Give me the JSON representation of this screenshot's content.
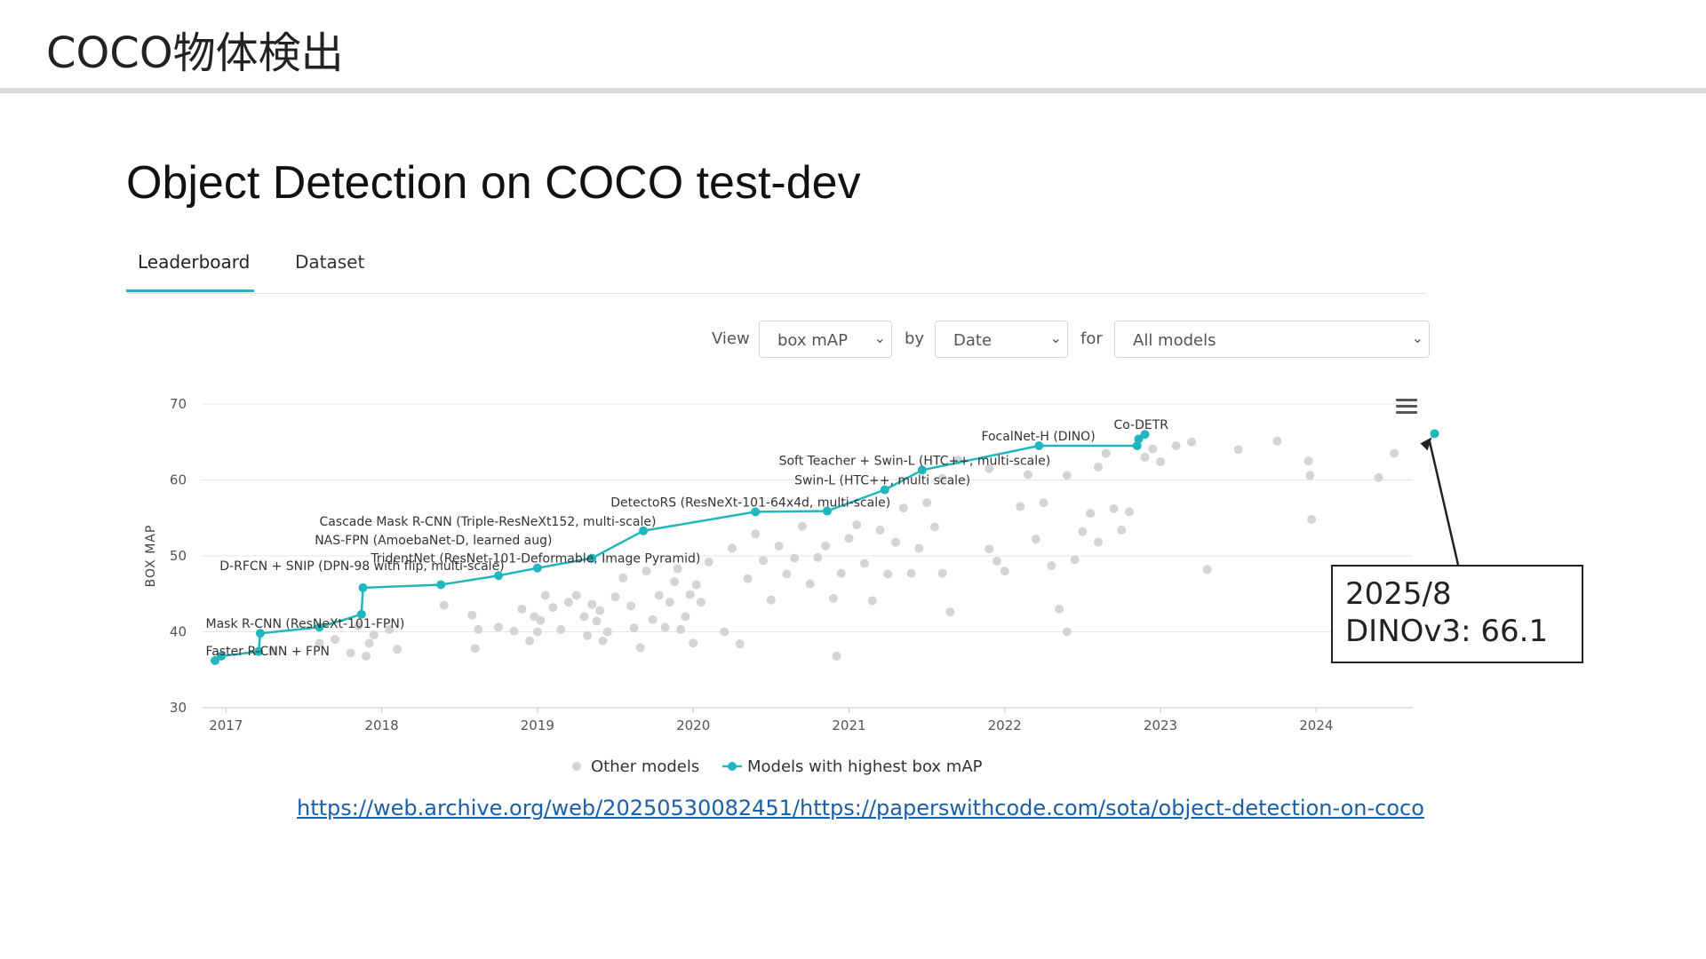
{
  "slide": {
    "title": "COCO物体検出"
  },
  "page": {
    "heading": "Object Detection on COCO test-dev"
  },
  "tabs": [
    {
      "label": "Leaderboard",
      "active": true
    },
    {
      "label": "Dataset",
      "active": false
    }
  ],
  "controls": {
    "view_label": "View",
    "view_value": "box mAP",
    "by_label": "by",
    "by_value": "Date",
    "for_label": "for",
    "for_value": "All models"
  },
  "callout": {
    "line1": "2025/8",
    "line2": "DINOv3: 66.1"
  },
  "source_url": "https://web.archive.org/web/20250530082451/https://paperswithcode.com/sota/object-detection-on-coco",
  "colors": {
    "accent": "#21b6bd",
    "other_points": "#d4d4d4",
    "grid": "#e6e6e6"
  },
  "icons": {
    "chart_menu": "hamburger-icon"
  },
  "chart_data": {
    "type": "scatter",
    "ylabel": "BOX MAP",
    "xlabel": "",
    "ylim": [
      30,
      70
    ],
    "xlim": [
      2016.85,
      2024.62
    ],
    "yticks": [
      30,
      40,
      50,
      60,
      70
    ],
    "xticks": [
      2017,
      2018,
      2019,
      2020,
      2021,
      2022,
      2023,
      2024
    ],
    "grid": true,
    "legend": [
      "Other models",
      "Models with highest box mAP"
    ],
    "legend_position": "bottom",
    "sota": {
      "name": "Models with highest box mAP",
      "points": [
        [
          2016.93,
          36.2
        ],
        [
          2016.97,
          36.8
        ],
        [
          2017.21,
          37.4
        ],
        [
          2017.22,
          39.8
        ],
        [
          2017.6,
          40.6
        ],
        [
          2017.87,
          42.3
        ],
        [
          2017.88,
          45.8
        ],
        [
          2018.38,
          46.2
        ],
        [
          2018.75,
          47.4
        ],
        [
          2019.0,
          48.4
        ],
        [
          2019.35,
          49.7
        ],
        [
          2019.68,
          53.3
        ],
        [
          2020.4,
          55.8
        ],
        [
          2020.86,
          55.9
        ],
        [
          2021.23,
          58.7
        ],
        [
          2021.47,
          61.3
        ],
        [
          2022.22,
          64.5
        ],
        [
          2022.85,
          64.5
        ],
        [
          2022.86,
          65.4
        ],
        [
          2022.9,
          66.0
        ]
      ]
    },
    "labels": [
      {
        "text": "Faster R-CNN + FPN",
        "x": 2016.87,
        "y": 36.2
      },
      {
        "text": "Mask R-CNN (ResNeXt-101-FPN)",
        "x": 2016.87,
        "y": 39.8
      },
      {
        "text": "D-RFCN + SNIP (DPN-98 with flip, multi-scale)",
        "x": 2016.96,
        "y": 47.4
      },
      {
        "text": "TridentNet (ResNet-101-Deformable, Image Pyramid)",
        "x": 2017.93,
        "y": 48.4
      },
      {
        "text": "NAS-FPN (AmoebaNet-D, learned aug)",
        "x": 2017.57,
        "y": 50.8
      },
      {
        "text": "Cascade Mask R-CNN (Triple-ResNeXt152, multi-scale)",
        "x": 2017.6,
        "y": 53.3
      },
      {
        "text": "DetectoRS (ResNeXt-101-64x4d, multi-scale)",
        "x": 2019.47,
        "y": 55.8
      },
      {
        "text": "Swin-L (HTC++, multi scale)",
        "x": 2020.65,
        "y": 58.7
      },
      {
        "text": "Soft Teacher + Swin-L (HTC++, multi-scale)",
        "x": 2020.55,
        "y": 61.3
      },
      {
        "text": "FocalNet-H (DINO)",
        "x": 2021.85,
        "y": 64.5
      },
      {
        "text": "Co-DETR",
        "x": 2022.7,
        "y": 66.0
      }
    ],
    "other_models": [
      [
        2017.3,
        37.5
      ],
      [
        2017.6,
        38.5
      ],
      [
        2017.7,
        39.0
      ],
      [
        2017.8,
        37.2
      ],
      [
        2017.9,
        36.8
      ],
      [
        2017.92,
        38.5
      ],
      [
        2017.85,
        40.8
      ],
      [
        2017.95,
        39.6
      ],
      [
        2018.05,
        40.3
      ],
      [
        2018.1,
        37.7
      ],
      [
        2018.4,
        43.5
      ],
      [
        2018.58,
        42.2
      ],
      [
        2018.6,
        37.8
      ],
      [
        2018.62,
        40.3
      ],
      [
        2018.75,
        40.6
      ],
      [
        2018.85,
        40.1
      ],
      [
        2018.9,
        43.0
      ],
      [
        2018.95,
        38.8
      ],
      [
        2018.98,
        42.0
      ],
      [
        2019.0,
        40.0
      ],
      [
        2019.02,
        41.5
      ],
      [
        2019.05,
        44.8
      ],
      [
        2019.1,
        43.2
      ],
      [
        2019.15,
        40.3
      ],
      [
        2019.2,
        43.9
      ],
      [
        2019.25,
        44.8
      ],
      [
        2019.3,
        42.0
      ],
      [
        2019.32,
        39.5
      ],
      [
        2019.35,
        43.6
      ],
      [
        2019.38,
        41.4
      ],
      [
        2019.4,
        42.8
      ],
      [
        2019.42,
        38.8
      ],
      [
        2019.45,
        40.0
      ],
      [
        2019.5,
        44.6
      ],
      [
        2019.55,
        47.1
      ],
      [
        2019.6,
        43.4
      ],
      [
        2019.62,
        40.5
      ],
      [
        2019.66,
        37.9
      ],
      [
        2019.7,
        48.0
      ],
      [
        2019.74,
        41.6
      ],
      [
        2019.78,
        44.8
      ],
      [
        2019.82,
        40.6
      ],
      [
        2019.85,
        43.9
      ],
      [
        2019.88,
        46.6
      ],
      [
        2019.9,
        48.3
      ],
      [
        2019.92,
        40.3
      ],
      [
        2019.95,
        42.0
      ],
      [
        2019.98,
        44.9
      ],
      [
        2020.0,
        38.5
      ],
      [
        2020.02,
        46.2
      ],
      [
        2020.05,
        43.9
      ],
      [
        2020.1,
        49.2
      ],
      [
        2020.2,
        40.0
      ],
      [
        2020.25,
        51.0
      ],
      [
        2020.3,
        38.4
      ],
      [
        2020.35,
        47.0
      ],
      [
        2020.4,
        52.9
      ],
      [
        2020.45,
        49.4
      ],
      [
        2020.5,
        44.2
      ],
      [
        2020.55,
        51.3
      ],
      [
        2020.6,
        47.6
      ],
      [
        2020.65,
        49.7
      ],
      [
        2020.7,
        53.9
      ],
      [
        2020.75,
        46.3
      ],
      [
        2020.8,
        49.8
      ],
      [
        2020.85,
        51.3
      ],
      [
        2020.9,
        44.4
      ],
      [
        2020.92,
        36.8
      ],
      [
        2020.95,
        47.7
      ],
      [
        2021.0,
        52.3
      ],
      [
        2021.05,
        54.1
      ],
      [
        2021.1,
        49.0
      ],
      [
        2021.15,
        44.1
      ],
      [
        2021.2,
        53.4
      ],
      [
        2021.25,
        47.6
      ],
      [
        2021.3,
        51.8
      ],
      [
        2021.35,
        56.3
      ],
      [
        2021.4,
        47.7
      ],
      [
        2021.45,
        51.0
      ],
      [
        2021.5,
        57.0
      ],
      [
        2021.55,
        53.8
      ],
      [
        2021.6,
        47.7
      ],
      [
        2021.65,
        42.6
      ],
      [
        2021.9,
        50.9
      ],
      [
        2021.95,
        49.3
      ],
      [
        2022.0,
        48.0
      ],
      [
        2022.1,
        56.5
      ],
      [
        2022.2,
        52.2
      ],
      [
        2022.25,
        57.0
      ],
      [
        2022.3,
        48.7
      ],
      [
        2022.35,
        43.0
      ],
      [
        2022.4,
        40.0
      ],
      [
        2022.45,
        49.5
      ],
      [
        2022.5,
        53.2
      ],
      [
        2022.55,
        55.6
      ],
      [
        2022.6,
        51.8
      ],
      [
        2022.65,
        63.5
      ],
      [
        2022.7,
        56.2
      ],
      [
        2022.75,
        53.4
      ],
      [
        2022.8,
        55.8
      ],
      [
        2022.9,
        63.0
      ],
      [
        2022.95,
        64.1
      ],
      [
        2023.0,
        62.4
      ],
      [
        2023.1,
        64.5
      ],
      [
        2023.2,
        65.0
      ],
      [
        2023.3,
        48.2
      ],
      [
        2023.5,
        64.0
      ],
      [
        2023.75,
        65.1
      ],
      [
        2023.95,
        62.5
      ],
      [
        2023.96,
        60.6
      ],
      [
        2023.97,
        54.8
      ],
      [
        2024.4,
        60.3
      ],
      [
        2024.5,
        63.5
      ],
      [
        2021.9,
        61.5
      ],
      [
        2022.15,
        60.7
      ],
      [
        2022.4,
        60.6
      ],
      [
        2022.6,
        61.7
      ],
      [
        2021.6,
        60.2
      ],
      [
        2021.7,
        62.6
      ]
    ],
    "callout_point": {
      "x": 2024.76,
      "y": 66.1
    }
  }
}
